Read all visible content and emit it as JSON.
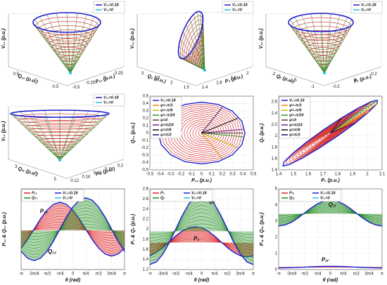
{
  "chart_data": [
    {
      "type": "surface",
      "zlabel": "V₁₂ (p.u.)",
      "xlabel": "Q₁₂ (p.u.)",
      "ylabel": "P₁₂ (p.u.)",
      "xticks": [
        0.5,
        0,
        -0.5
      ],
      "yticks": [
        -0.5,
        -0.25,
        0,
        0.25
      ],
      "legend_items": [
        {
          "name": "V₁₂=0.18",
          "color": "#1e1ed2"
        },
        {
          "name": "V₁₂=0",
          "color": "#20c0e0"
        }
      ]
    },
    {
      "type": "surface",
      "zlabel": "V₁₂ (p.u.)",
      "xlabel": "Q₂ (p.u.)",
      "ylabel": "P₂ (p.u.)",
      "xticks": [
        3,
        2.5,
        2,
        1.5
      ],
      "yticks": [
        1.4,
        1.6,
        1.8,
        2
      ],
      "legend_items": [
        {
          "name": "V₁₂=0.18",
          "color": "#1e1ed2"
        },
        {
          "name": "V₁₂=0",
          "color": "#20c0e0"
        }
      ]
    },
    {
      "type": "surface",
      "zlabel": "V₁₂ (p.u.)",
      "xlabel": "Qᵣ (p.u.)",
      "ylabel": "Pᵣ (p.u.)",
      "xticks": [
        -2,
        -1.5,
        -1
      ],
      "yticks": [
        -0.2,
        0,
        0.2
      ],
      "legend_items": [
        {
          "name": "V₁₂=0.18",
          "color": "#1e1ed2"
        },
        {
          "name": "V₁₂=0",
          "color": "#20c0e0"
        }
      ]
    },
    {
      "type": "surface",
      "zlabel": "V₁₂ (p.u.)",
      "xlabel": "Q₂ᵣ (p.u.)",
      "ylabel": "P₂ᵣ (p.u.)",
      "xticks": [
        3,
        4,
        5
      ],
      "yticks": [
        0.12,
        0.14,
        0.16,
        0.18,
        0.2
      ],
      "legend_items": [
        {
          "name": "V₁₂=0.18",
          "color": "#1e1ed2"
        },
        {
          "name": "V₁₂=0",
          "color": "#20c0e0"
        }
      ]
    },
    {
      "type": "line",
      "xlabel": "P₁₂ (p.u.)",
      "ylabel": "Q₁₂ (p.u.)",
      "legend_position": "upper left",
      "rings": true,
      "xlim": [
        -0.5,
        0.5
      ],
      "xticks": [
        -0.5,
        -0.4,
        -0.3,
        -0.2,
        -0.1,
        0,
        0.1,
        0.2,
        0.3,
        0.4,
        0.5
      ],
      "ylim": [
        -0.5,
        0.5
      ],
      "yticks": [
        -0.5,
        -0.4,
        -0.3,
        -0.2,
        -0.1,
        0,
        0.1,
        0.2,
        0.3,
        0.4,
        0.5
      ],
      "series": [
        {
          "name": "V₁₂=0.18",
          "color": "#1e1ed2",
          "x": [
            0.42,
            0.388,
            0.297,
            0.161,
            0,
            -0.161,
            -0.297,
            -0.388,
            -0.42,
            -0.388,
            -0.297,
            -0.161,
            0,
            0.161,
            0.297,
            0.388,
            0.42
          ],
          "values": [
            0,
            0.161,
            0.297,
            0.388,
            0.42,
            0.388,
            0.297,
            0.161,
            0,
            -0.161,
            -0.297,
            -0.388,
            -0.42,
            -0.388,
            -0.297,
            -0.161,
            0
          ]
        },
        {
          "name": "φ=-π/3",
          "color": "#e08a00",
          "x": [
            0,
            0.2
          ],
          "values": [
            0,
            -0.35
          ]
        },
        {
          "name": "φ=-π/6",
          "color": "#c8c000",
          "x": [
            0,
            0.35
          ],
          "values": [
            0,
            -0.2
          ]
        },
        {
          "name": "φ=-π/24",
          "color": "#2a9a2a",
          "x": [
            0,
            0.4
          ],
          "values": [
            0,
            -0.05
          ]
        },
        {
          "name": "φ=0",
          "color": "#444444",
          "x": [
            0,
            0.4
          ],
          "values": [
            0,
            0
          ]
        },
        {
          "name": "φ=π/24",
          "color": "#6a1a8a",
          "x": [
            0,
            0.4
          ],
          "values": [
            0,
            0.05
          ]
        },
        {
          "name": "φ=π/6",
          "color": "#111111",
          "x": [
            0,
            0.35
          ],
          "values": [
            0,
            0.2
          ]
        },
        {
          "name": "φ=π/3",
          "color": "#101070",
          "x": [
            0,
            0.2
          ],
          "values": [
            0,
            0.35
          ]
        }
      ]
    },
    {
      "type": "line",
      "xlabel": "P₂ (p.u.)",
      "ylabel": "Q₂ (p.u.)",
      "legend_position": "upper left",
      "rings": true,
      "xlim": [
        1.4,
        2.1
      ],
      "xticks": [
        1.4,
        1.5,
        1.6,
        1.7,
        1.8,
        1.9,
        2,
        2.1
      ],
      "ylim": [
        1.4,
        2.7
      ],
      "yticks": [
        1.4,
        1.6,
        1.8,
        2,
        2.2,
        2.4,
        2.6
      ],
      "series": [
        {
          "name": "V₁₂=0.18",
          "color": "#1e1ed2",
          "x": [
            2.07,
            2.065,
            2.011,
            1.919,
            1.8,
            1.673,
            1.559,
            1.473,
            1.43,
            1.435,
            1.489,
            1.581,
            1.7,
            1.827,
            1.941,
            2.027,
            2.07
          ],
          "values": [
            2.63,
            2.567,
            2.425,
            2.226,
            2.0,
            1.782,
            1.605,
            1.495,
            1.47,
            1.533,
            1.675,
            1.874,
            2.1,
            2.318,
            2.495,
            2.605,
            2.63
          ]
        },
        {
          "name": "φ=-π/3",
          "color": "#e08a00",
          "x": [
            1.75,
            2.011
          ],
          "values": [
            2.05,
            2.425
          ]
        },
        {
          "name": "φ=-π/6",
          "color": "#c8c000",
          "x": [
            1.75,
            2.065
          ],
          "values": [
            2.05,
            2.567
          ]
        },
        {
          "name": "φ=-π/24",
          "color": "#2a9a2a",
          "x": [
            1.75,
            2.07
          ],
          "values": [
            2.05,
            2.63
          ]
        },
        {
          "name": "φ=0",
          "color": "#444444",
          "x": [
            1.75,
            2.027
          ],
          "values": [
            2.05,
            2.605
          ]
        },
        {
          "name": "φ=π/24",
          "color": "#6a1a8a",
          "x": [
            1.75,
            1.941
          ],
          "values": [
            2.05,
            2.495
          ]
        },
        {
          "name": "φ=π/6",
          "color": "#111111",
          "x": [
            1.75,
            1.827
          ],
          "values": [
            2.05,
            2.318
          ]
        },
        {
          "name": "φ=π/3",
          "color": "#101070",
          "x": [
            1.75,
            1.919
          ],
          "values": [
            2.05,
            2.226
          ]
        }
      ]
    },
    {
      "type": "line",
      "xlabel": "θ (rad)",
      "ylabel": "P₁₂ & Q₁₂ (p.u.)",
      "legend_position": "upper left",
      "bands": true,
      "annotations": [
        "P₁₂",
        "Q₁₂"
      ],
      "xlim": [
        -3.1416,
        3.1416
      ],
      "xticks": [
        {
          "value": -3.1416,
          "label": "-π"
        },
        {
          "value": -2.3562,
          "label": "-3π/4"
        },
        {
          "value": -1.5708,
          "label": "-π/2"
        },
        {
          "value": -0.7854,
          "label": "-π/4"
        },
        0,
        {
          "value": 0.7854,
          "label": "π/4"
        },
        {
          "value": 1.5708,
          "label": "π/2"
        },
        {
          "value": 2.3562,
          "label": "3π/4"
        },
        {
          "value": 3.1416,
          "label": "π"
        }
      ],
      "ylim": [
        -0.45,
        0.45
      ],
      "x": [
        -3.1416,
        -2.7489,
        -2.3562,
        -1.9635,
        -1.5708,
        -1.1781,
        -0.7854,
        -0.3927,
        0,
        0.3927,
        0.7854,
        1.1781,
        1.5708,
        1.9635,
        2.3562,
        2.7489,
        3.1416
      ],
      "series": [
        {
          "name": "P₁₂",
          "color": "#e02020",
          "values": [
            -0.212,
            -0.115,
            0,
            0.115,
            0.212,
            0.277,
            0.3,
            0.277,
            0.212,
            0.115,
            0,
            -0.115,
            -0.212,
            -0.277,
            -0.3,
            -0.277,
            -0.212
          ]
        },
        {
          "name": "Q₁₂",
          "color": "#1a8a1a",
          "values": [
            -0.247,
            -0.323,
            -0.35,
            -0.323,
            -0.247,
            -0.134,
            0,
            0.134,
            0.247,
            0.323,
            0.35,
            0.323,
            0.247,
            0.134,
            0,
            -0.134,
            -0.247
          ]
        }
      ],
      "legend_items": [
        {
          "name": "V₁₂=0.18",
          "color": "#1e1ed2"
        },
        {
          "name": "V₁₂=0",
          "color": "#20c0e0"
        }
      ]
    },
    {
      "type": "line",
      "xlabel": "θ (rad)",
      "ylabel": "P₂ & Q₂ (p.u.)",
      "legend_position": "upper left",
      "bands": true,
      "annotations": [
        "Q₂",
        "P₂"
      ],
      "xlim": [
        -3.1416,
        3.1416
      ],
      "xticks": [
        {
          "value": -3.1416,
          "label": "-π"
        },
        {
          "value": -2.3562,
          "label": "-3π/4"
        },
        {
          "value": -1.5708,
          "label": "-π/2"
        },
        {
          "value": -0.7854,
          "label": "-π/4"
        },
        0,
        {
          "value": 0.7854,
          "label": "π/4"
        },
        {
          "value": 1.5708,
          "label": "π/2"
        },
        {
          "value": 2.3562,
          "label": "3π/4"
        },
        {
          "value": 3.1416,
          "label": "π"
        }
      ],
      "ylim": [
        1.2,
        2.8
      ],
      "yticks": [
        1.2,
        1.4,
        1.6,
        1.8,
        2,
        2.2,
        2.4,
        2.6,
        2.8
      ],
      "x": [
        -3.1416,
        -2.7489,
        -2.3562,
        -1.9635,
        -1.5708,
        -1.1781,
        -0.7854,
        -0.3927,
        0,
        0.3927,
        0.7854,
        1.1781,
        1.5708,
        1.9635,
        2.3562,
        2.7489,
        3.1416
      ],
      "series": [
        {
          "name": "P₂",
          "color": "#e02020",
          "values": [
            1.473,
            1.538,
            1.635,
            1.75,
            1.865,
            1.962,
            2.027,
            2.05,
            2.027,
            1.962,
            1.865,
            1.75,
            1.635,
            1.538,
            1.473,
            1.45,
            1.473
          ]
        },
        {
          "name": "Q₂",
          "color": "#1a8a1a",
          "values": [
            1.3,
            1.353,
            1.505,
            1.732,
            2.0,
            2.268,
            2.495,
            2.647,
            2.7,
            2.647,
            2.495,
            2.268,
            2.0,
            1.732,
            1.505,
            1.353,
            1.3
          ]
        }
      ],
      "legend_items": [
        {
          "name": "V₁₂=0.18",
          "color": "#1e1ed2"
        },
        {
          "name": "V₁₂=0",
          "color": "#20c0e0"
        }
      ]
    },
    {
      "type": "line",
      "xlabel": "θ (rad)",
      "ylabel": "P₂ᵣ & Q₂ᵣ (p.u.)",
      "legend_position": "upper left",
      "bands": true,
      "annotations": [
        "Q₂ᵣ",
        "P₂ᵣ"
      ],
      "xlim": [
        -3.1416,
        3.1416
      ],
      "xticks": [
        {
          "value": -3.1416,
          "label": "-π"
        },
        {
          "value": -2.3562,
          "label": "-3π/4"
        },
        {
          "value": -1.5708,
          "label": "-π/2"
        },
        {
          "value": -0.7854,
          "label": "-π/4"
        },
        0,
        {
          "value": 0.7854,
          "label": "π/4"
        },
        {
          "value": 1.5708,
          "label": "π/2"
        },
        {
          "value": 2.3562,
          "label": "3π/4"
        },
        {
          "value": 3.1416,
          "label": "π"
        }
      ],
      "ylim": [
        0,
        5
      ],
      "yticks": [
        0,
        1,
        2,
        3,
        4,
        5
      ],
      "x": [
        -3.1416,
        -2.7489,
        -2.3562,
        -1.9635,
        -1.5708,
        -1.1781,
        -0.7854,
        -0.3927,
        0,
        0.3927,
        0.7854,
        1.1781,
        1.5708,
        1.9635,
        2.3562,
        2.7489,
        3.1416
      ],
      "series": [
        {
          "name": "P₂ᵣ",
          "color": "#e02020",
          "values": [
            0.1,
            0.104,
            0.115,
            0.131,
            0.15,
            0.169,
            0.185,
            0.196,
            0.2,
            0.196,
            0.185,
            0.169,
            0.15,
            0.131,
            0.115,
            0.104,
            0.1
          ]
        },
        {
          "name": "Q₂ᵣ",
          "color": "#1a8a1a",
          "values": [
            2.7,
            2.761,
            2.934,
            3.194,
            3.5,
            3.806,
            4.066,
            4.239,
            4.3,
            4.239,
            4.066,
            3.806,
            3.5,
            3.194,
            2.934,
            2.761,
            2.7
          ]
        }
      ],
      "legend_items": [
        {
          "name": "V₁₂=0.18",
          "color": "#1e1ed2"
        },
        {
          "name": "V₁₂=0",
          "color": "#20c0e0"
        }
      ]
    }
  ]
}
